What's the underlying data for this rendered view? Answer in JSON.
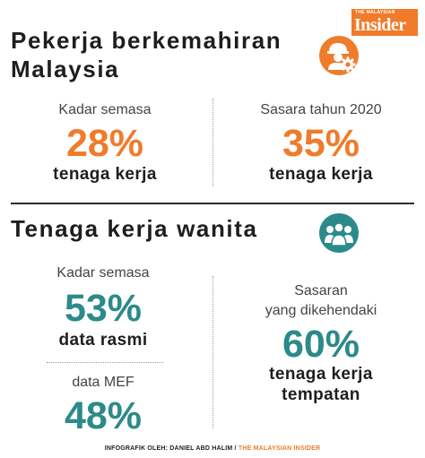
{
  "brand": {
    "top": "THE MALAYSIAN",
    "main": "Insider",
    "color": "#f07b2a"
  },
  "section1": {
    "title_line1": "Pekerja berkemahiran",
    "title_line2": "Malaysia",
    "icon": "worker-gear-icon",
    "left": {
      "label": "Kadar semasa",
      "value": "28%",
      "unit": "tenaga kerja"
    },
    "right": {
      "label": "Sasara tahun 2020",
      "value": "35%",
      "unit": "tenaga kerja"
    }
  },
  "section2": {
    "title": "Tenaga kerja wanita",
    "icon": "women-group-icon",
    "left_top": {
      "label": "Kadar semasa",
      "value": "53%",
      "unit": "data rasmi"
    },
    "left_bottom": {
      "label": "data MEF",
      "value": "48%"
    },
    "right": {
      "label_line1": "Sasaran",
      "label_line2": "yang dikehendaki",
      "value": "60%",
      "unit_line1": "tenaga kerja",
      "unit_line2": "tempatan"
    }
  },
  "footer": {
    "credit": "INFOGRAFIK OLEH: DANIEL ABD HALIM /",
    "source": "THE MALAYSIAN INSIDER"
  },
  "colors": {
    "orange": "#f07b2a",
    "teal": "#2c8a8a",
    "text": "#1e1e1e"
  }
}
